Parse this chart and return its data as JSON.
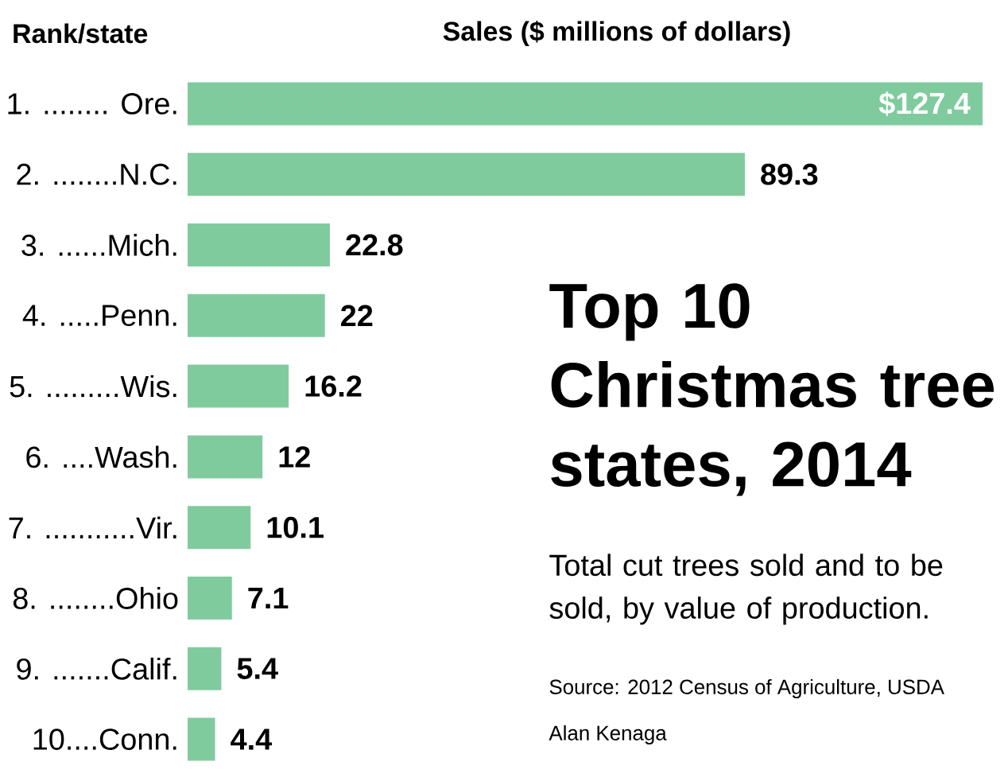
{
  "chart_data": {
    "type": "bar",
    "orientation": "horizontal",
    "title": "Top 10 Christmas tree states, 2014",
    "subtitle": "Total cut trees sold and to be sold, by value of production.",
    "xlabel": "Sales ($ millions of dollars)",
    "ylabel": "Rank/state",
    "categories": [
      "1. ........ Ore.",
      "2. ........N.C.",
      "3. ......Mich.",
      "4. .....Penn.",
      "5. .........Wis.",
      "6. ....Wash.",
      "7. ...........Vir.",
      "8. ........Ohio",
      "9. .......Calif.",
      "10....Conn."
    ],
    "values": [
      127.4,
      89.3,
      22.8,
      22,
      16.2,
      12,
      10.1,
      7.1,
      5.4,
      4.4
    ],
    "value_labels": [
      "$127.4",
      "89.3",
      "22.8",
      "22",
      "16.2",
      "12",
      "10.1",
      "7.1",
      "5.4",
      "4.4"
    ],
    "color": "#80cb9e",
    "annotations": [
      "Source: 2012 Census of Agriculture, USDA",
      "Alan Kenaga"
    ]
  }
}
